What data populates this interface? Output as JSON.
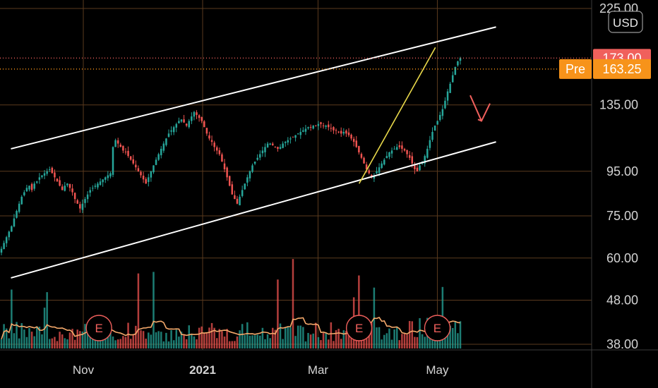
{
  "currency_label": "USD",
  "chart_data": {
    "type": "candlestick",
    "y_scale": "log",
    "y_ticks": [
      {
        "value": 225,
        "label": "225.00"
      },
      {
        "value": 135,
        "label": "135.00"
      },
      {
        "value": 95,
        "label": "95.00"
      },
      {
        "value": 75,
        "label": "75.00"
      },
      {
        "value": 60,
        "label": "60.00"
      },
      {
        "value": 48,
        "label": "48.00"
      },
      {
        "value": 38,
        "label": "38.00"
      }
    ],
    "x_ticks": [
      {
        "label": "Nov",
        "bold": false,
        "date": "2020-11-01"
      },
      {
        "label": "2021",
        "bold": true,
        "date": "2021-01-01"
      },
      {
        "label": "Mar",
        "bold": false,
        "date": "2021-03-01"
      },
      {
        "label": "May",
        "bold": false,
        "date": "2021-05-01"
      }
    ],
    "last_price": {
      "label": "173.00",
      "value": 173.0,
      "color": "#f0605c"
    },
    "premarket": {
      "tag": "Pre",
      "label": "163.25",
      "value": 163.25,
      "color": "#f7931a"
    },
    "earnings": [
      {
        "label": "E",
        "date": "2020-11-09"
      },
      {
        "label": "E",
        "date": "2021-03-22"
      },
      {
        "label": "E",
        "date": "2021-05-01"
      }
    ],
    "closes": [
      63,
      65,
      67,
      69,
      71,
      74,
      77,
      80,
      83,
      85,
      87,
      88,
      86,
      89,
      90,
      92,
      93,
      94,
      95,
      96,
      94,
      92,
      90,
      88,
      86,
      88,
      89,
      87,
      85,
      82,
      80,
      78,
      80,
      82,
      84,
      86,
      87,
      88,
      89,
      90,
      91,
      92,
      93,
      94,
      108,
      112,
      110,
      108,
      106,
      105,
      103,
      101,
      99,
      97,
      95,
      93,
      91,
      89,
      92,
      95,
      98,
      101,
      104,
      107,
      110,
      113,
      116,
      118,
      120,
      122,
      124,
      125,
      123,
      121,
      124,
      127,
      130,
      128,
      126,
      124,
      120,
      116,
      113,
      111,
      108,
      106,
      104,
      100,
      96,
      92,
      88,
      84,
      82,
      80,
      83,
      86,
      89,
      92,
      95,
      98,
      100,
      102,
      104,
      106,
      108,
      110,
      110,
      109,
      108,
      107,
      108,
      110,
      111,
      112,
      113,
      114,
      115,
      116,
      117,
      118,
      119,
      120,
      120,
      121,
      121,
      122,
      122,
      121,
      121,
      120,
      119,
      118,
      118,
      117,
      116,
      117,
      116,
      115,
      113,
      111,
      108,
      105,
      102,
      99,
      96,
      94,
      92,
      93,
      95,
      97,
      99,
      101,
      103,
      105,
      106,
      107,
      108,
      108,
      107,
      106,
      104,
      102,
      99,
      96,
      95,
      98,
      100,
      103,
      107,
      112,
      117,
      121,
      124,
      128,
      132,
      138,
      145,
      151,
      158,
      165,
      170,
      173
    ]
  },
  "channel": {
    "upper": {
      "from": {
        "date": "2020-09-25",
        "price": 107
      },
      "to": {
        "date": "2021-05-31",
        "price": 204
      },
      "color": "#ffffff"
    },
    "lower": {
      "from": {
        "date": "2020-09-25",
        "price": 54
      },
      "to": {
        "date": "2021-05-31",
        "price": 111
      },
      "color": "#ffffff"
    },
    "trend": {
      "from": {
        "date": "2021-03-22",
        "price": 89
      },
      "to": {
        "date": "2021-04-30",
        "price": 183
      },
      "color": "#e8d84a"
    },
    "arrow_color": "#f0605c"
  },
  "colors": {
    "up": "#26a69a",
    "down": "#ef5350",
    "grid": "#5a3a1e",
    "vol_ma": "#f5a96b"
  }
}
